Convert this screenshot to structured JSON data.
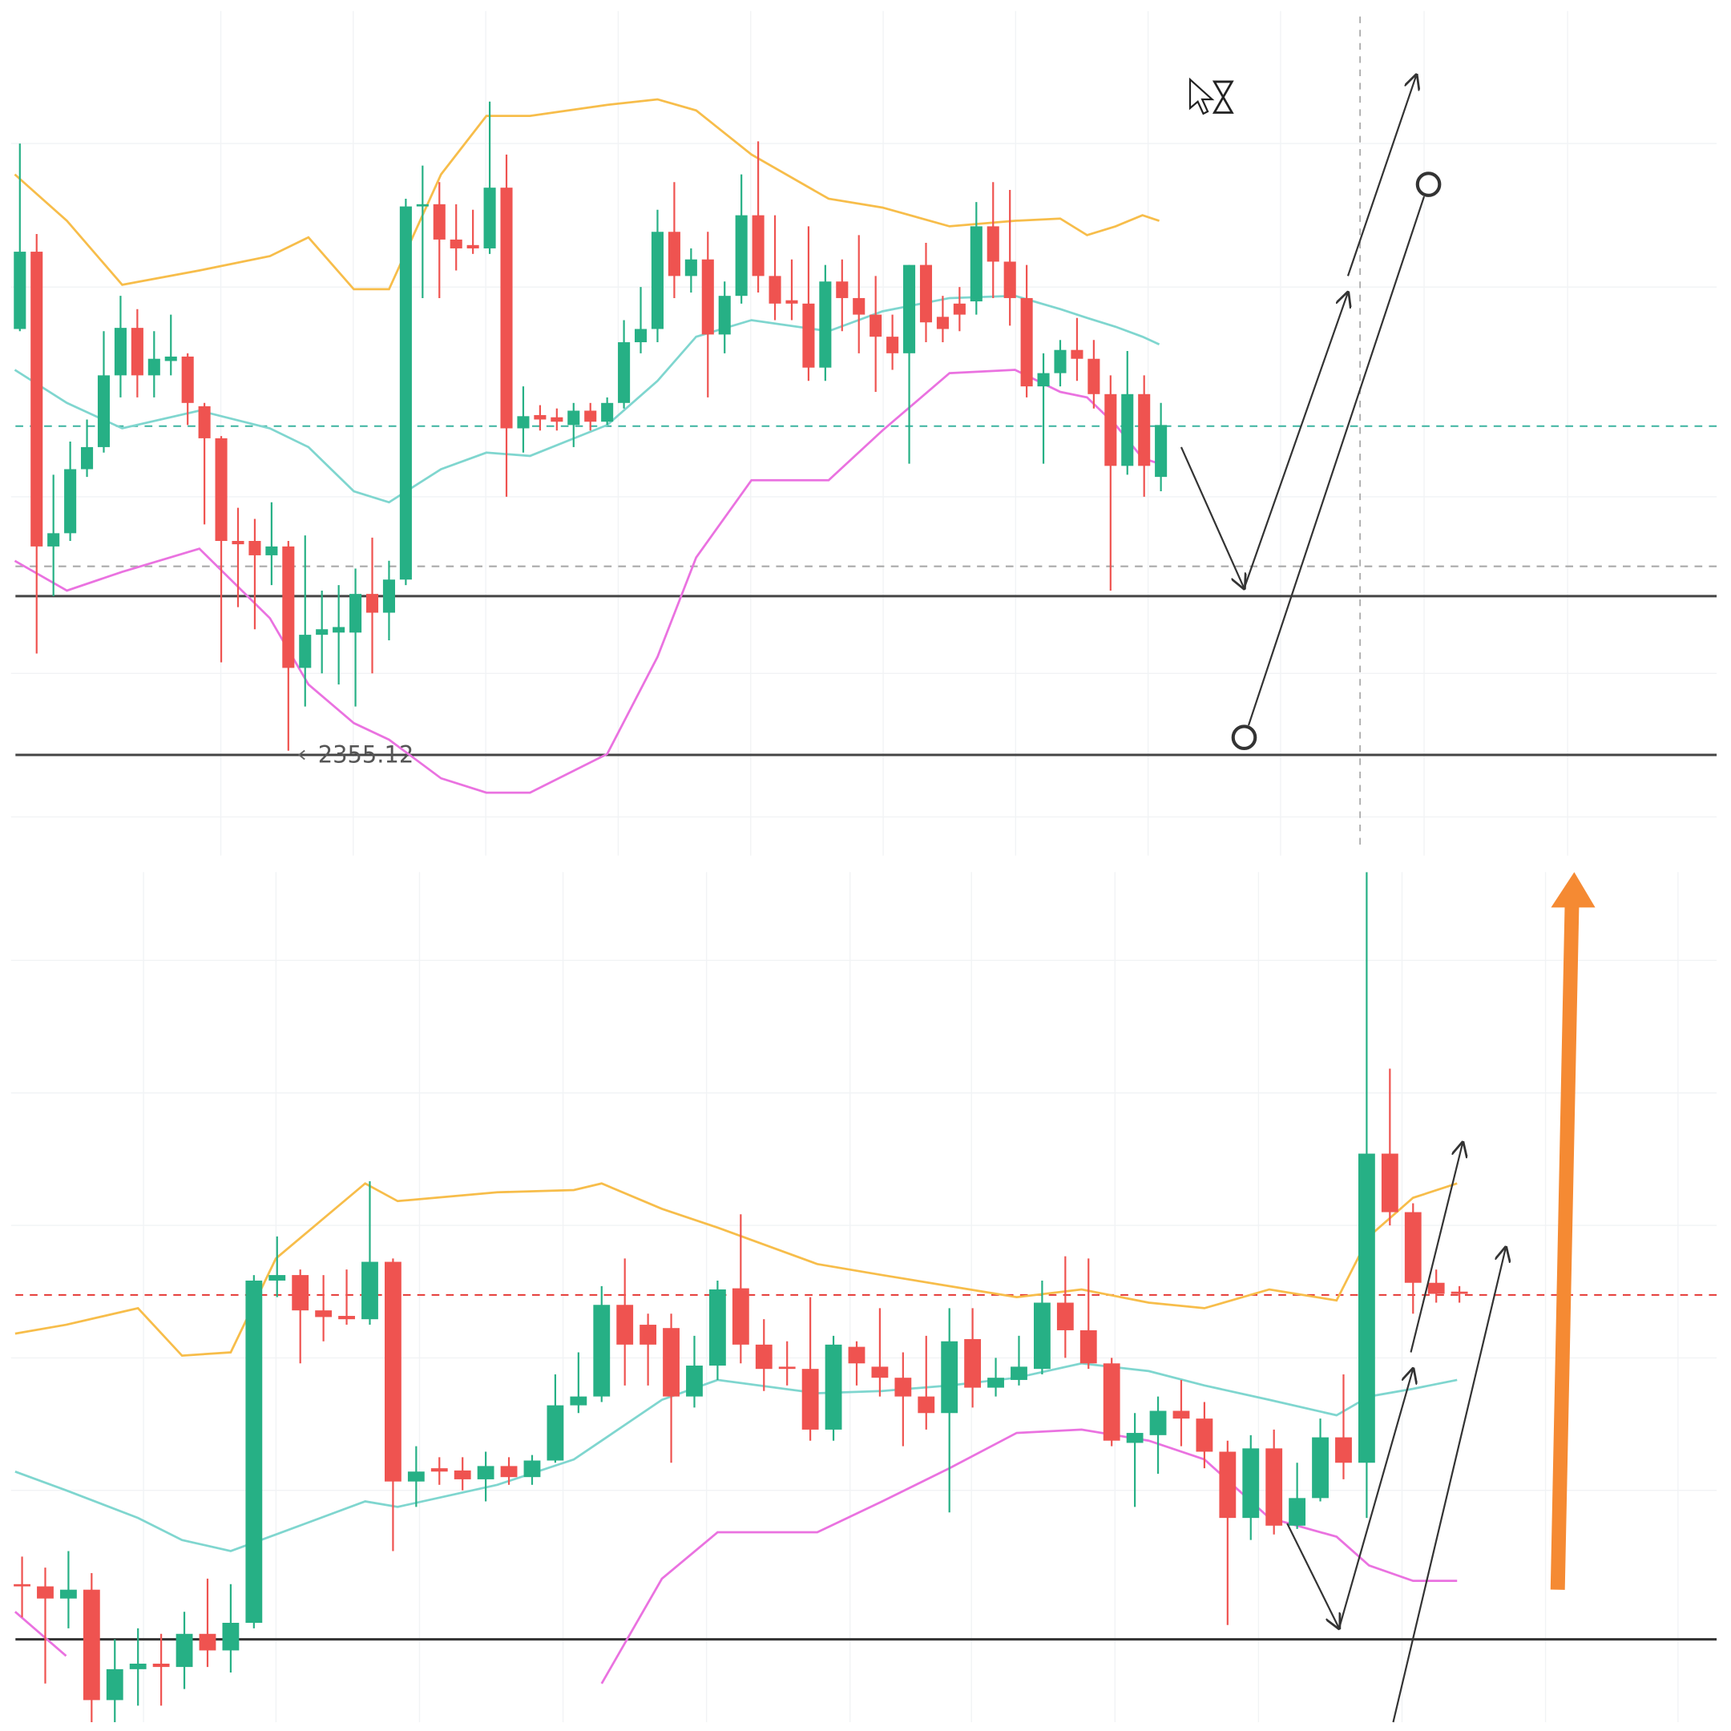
{
  "chart_data": [
    {
      "type": "candlestick",
      "up_color": "#26b085",
      "down_color": "#ef5350",
      "ylim": [
        2346,
        2423.5
      ],
      "open": [
        2393.7,
        2400.7,
        2374.0,
        2375.2,
        2381.0,
        2383.0,
        2389.5,
        2393.8,
        2389.5,
        2390.8,
        2391.2,
        2386.7,
        2383.8,
        2374.5,
        2374.5,
        2373.2,
        2374.0,
        2363.0,
        2366.0,
        2366.2,
        2366.2,
        2369.7,
        2368.0,
        2371.0,
        2404.8,
        2405.0,
        2401.8,
        2401.3,
        2401.0,
        2406.5,
        2384.7,
        2385.9,
        2385.7,
        2385.0,
        2386.3,
        2385.3,
        2387.0,
        2392.5,
        2393.7,
        2402.5,
        2398.5,
        2400.0,
        2393.2,
        2396.7,
        2404.0,
        2398.5,
        2396.3,
        2396.0,
        2390.2,
        2398.0,
        2396.5,
        2395.0,
        2393.0,
        2391.5,
        2399.5,
        2394.8,
        2396.0,
        2396.2,
        2403.0,
        2399.8,
        2396.5,
        2388.5,
        2389.7,
        2391.8,
        2391.0,
        2387.8,
        2381.3,
        2387.8,
        2380.3
      ],
      "high": [
        2410.5,
        2402.3,
        2380.5,
        2383.5,
        2385.5,
        2393.5,
        2396.7,
        2395.5,
        2393.5,
        2395.0,
        2391.5,
        2387.0,
        2384.0,
        2377.5,
        2376.5,
        2378.0,
        2374.5,
        2375.0,
        2370.0,
        2370.5,
        2372.0,
        2374.8,
        2372.7,
        2405.5,
        2408.5,
        2407.0,
        2405.0,
        2404.5,
        2414.3,
        2409.5,
        2388.5,
        2386.8,
        2386.5,
        2387.0,
        2387.0,
        2387.5,
        2394.5,
        2397.5,
        2404.5,
        2407.0,
        2401.0,
        2402.5,
        2398.0,
        2407.7,
        2410.7,
        2404.0,
        2400.0,
        2403.0,
        2399.5,
        2400.0,
        2402.2,
        2398.5,
        2395.0,
        2399.5,
        2401.5,
        2396.7,
        2397.5,
        2405.2,
        2407.0,
        2406.3,
        2399.5,
        2391.5,
        2392.7,
        2394.7,
        2392.7,
        2389.5,
        2391.7,
        2389.5,
        2387.0
      ],
      "low": [
        2393.5,
        2364.3,
        2369.5,
        2374.5,
        2380.3,
        2382.5,
        2387.5,
        2387.5,
        2387.5,
        2389.5,
        2385.0,
        2376.0,
        2363.5,
        2368.5,
        2366.5,
        2370.5,
        2355.5,
        2359.5,
        2362.5,
        2361.5,
        2359.5,
        2362.5,
        2365.5,
        2370.5,
        2396.5,
        2396.5,
        2399.0,
        2400.5,
        2400.5,
        2378.5,
        2382.5,
        2384.5,
        2384.5,
        2383.0,
        2384.5,
        2385.0,
        2386.5,
        2391.5,
        2392.5,
        2396.5,
        2397.0,
        2387.5,
        2391.5,
        2396.0,
        2397.0,
        2394.5,
        2394.5,
        2389.0,
        2389.0,
        2393.5,
        2391.5,
        2388.0,
        2390.0,
        2381.5,
        2392.5,
        2392.5,
        2393.5,
        2395.0,
        2396.5,
        2394.0,
        2387.5,
        2381.5,
        2388.5,
        2389.0,
        2386.5,
        2370.0,
        2380.5,
        2378.5,
        2379.0
      ],
      "close": [
        2400.7,
        2374.0,
        2375.2,
        2381.0,
        2383.0,
        2389.5,
        2393.8,
        2389.5,
        2391.0,
        2391.2,
        2387.0,
        2383.8,
        2374.5,
        2374.2,
        2373.2,
        2374.0,
        2363.0,
        2366.0,
        2366.5,
        2366.7,
        2369.7,
        2368.0,
        2371.0,
        2404.8,
        2405.0,
        2401.8,
        2401.0,
        2401.0,
        2406.5,
        2384.7,
        2385.8,
        2385.5,
        2385.3,
        2386.3,
        2385.3,
        2387.0,
        2392.5,
        2393.7,
        2402.5,
        2398.5,
        2400.0,
        2393.2,
        2396.7,
        2404.0,
        2398.5,
        2396.0,
        2396.0,
        2390.2,
        2398.0,
        2396.5,
        2395.0,
        2393.0,
        2391.5,
        2399.5,
        2394.3,
        2393.7,
        2395.0,
        2403.0,
        2399.8,
        2396.5,
        2388.5,
        2389.7,
        2391.8,
        2391.0,
        2387.8,
        2381.3,
        2387.8,
        2381.3,
        2385.0
      ],
      "band_x": [
        -0.3,
        2.8,
        6.1,
        10.7,
        14.9,
        17.2,
        19.9,
        22.0,
        25.1,
        27.8,
        30.4,
        35.0,
        38.0,
        40.3,
        43.6,
        48.2,
        51.4,
        55.4,
        59.3,
        62.0,
        63.6,
        65.3,
        66.9,
        67.9
      ],
      "bands": [
        {
          "color": "#f7bd4a",
          "values": [
            2407.7,
            2403.5,
            2397.7,
            2399.0,
            2400.3,
            2402.0,
            2397.3,
            2397.3,
            2407.7,
            2413.0,
            2413.0,
            2414.0,
            2414.5,
            2413.5,
            2409.5,
            2405.5,
            2404.7,
            2403.0,
            2403.5,
            2403.7,
            2402.2,
            2403.0,
            2404.0,
            2403.5
          ]
        },
        {
          "color": "#7fd6cf",
          "values": [
            2390.0,
            2387.0,
            2384.7,
            2386.3,
            2384.7,
            2383.0,
            2379.0,
            2378.0,
            2381.0,
            2382.5,
            2382.2,
            2385.0,
            2389.0,
            2393.0,
            2394.5,
            2393.5,
            2395.3,
            2396.5,
            2396.7,
            2395.5,
            2394.7,
            2393.9,
            2393.0,
            2392.3
          ]
        },
        {
          "color": "#ea72e0",
          "values": [
            2372.7,
            2370.0,
            2371.7,
            2373.8,
            2367.5,
            2361.5,
            2358.0,
            2356.5,
            2353.0,
            2351.7,
            2351.7,
            2355.2,
            2364.0,
            2373.0,
            2380.0,
            2380.0,
            2384.5,
            2389.7,
            2390.0,
            2388.0,
            2387.5,
            2385.0,
            2382.0,
            2381.5
          ]
        }
      ],
      "levels": [
        {
          "value": 2384.9,
          "color": "#3bb3a0",
          "dashed": true
        },
        {
          "value": 2372.2,
          "color": "#aaaaaa",
          "dashed": true
        },
        {
          "value": 2369.5,
          "color": "#444444",
          "dashed": false
        },
        {
          "value": 2355.12,
          "color": "#444444",
          "dashed": false,
          "labeled": true
        }
      ]
    },
    {
      "type": "candlestick",
      "up_color": "#26b085",
      "down_color": "#ef5350",
      "ylim": [
        2339.5,
        2416.5
      ],
      "open": [
        2352.0,
        2351.8,
        2350.7,
        2351.5,
        2341.5,
        2344.3,
        2344.8,
        2344.5,
        2347.5,
        2346.0,
        2348.5,
        2379.5,
        2380.0,
        2376.8,
        2376.3,
        2376.0,
        2381.2,
        2361.3,
        2362.5,
        2362.3,
        2361.5,
        2362.7,
        2361.7,
        2363.2,
        2368.2,
        2369.0,
        2377.3,
        2375.5,
        2375.2,
        2369.0,
        2371.8,
        2378.8,
        2373.7,
        2371.7,
        2371.5,
        2366.0,
        2373.5,
        2371.7,
        2370.7,
        2369.0,
        2367.5,
        2374.2,
        2369.8,
        2370.5,
        2371.5,
        2377.5,
        2375.0,
        2372.0,
        2364.8,
        2365.5,
        2367.7,
        2367.0,
        2364.0,
        2358.0,
        2364.3,
        2357.3,
        2359.8,
        2365.3,
        2363.0,
        2391.0,
        2385.7,
        2379.3,
        2378.5
      ],
      "high": [
        2354.5,
        2353.5,
        2355.0,
        2353.0,
        2347.0,
        2348.0,
        2347.5,
        2349.5,
        2352.5,
        2352.0,
        2380.0,
        2383.5,
        2380.5,
        2380.0,
        2380.5,
        2388.5,
        2381.5,
        2364.5,
        2363.5,
        2363.5,
        2364.0,
        2363.5,
        2363.7,
        2371.0,
        2373.0,
        2379.0,
        2381.5,
        2376.5,
        2376.5,
        2374.5,
        2379.5,
        2385.5,
        2376.0,
        2374.0,
        2378.0,
        2374.5,
        2374.0,
        2377.0,
        2373.0,
        2374.5,
        2377.0,
        2377.0,
        2372.5,
        2374.5,
        2379.5,
        2381.7,
        2381.5,
        2372.5,
        2367.5,
        2369.0,
        2370.5,
        2368.5,
        2365.0,
        2365.5,
        2366.0,
        2363.0,
        2367.0,
        2371.0,
        2416.5,
        2398.7,
        2386.5,
        2380.5,
        2379.0
      ],
      "low": [
        2349.0,
        2343.0,
        2348.0,
        2339.5,
        2339.5,
        2341.0,
        2341.0,
        2342.5,
        2344.5,
        2344.0,
        2348.0,
        2378.0,
        2372.0,
        2374.0,
        2375.5,
        2375.5,
        2355.0,
        2359.0,
        2361.0,
        2360.5,
        2359.5,
        2361.0,
        2361.0,
        2363.0,
        2367.5,
        2368.5,
        2370.0,
        2370.0,
        2363.0,
        2368.0,
        2370.5,
        2372.0,
        2369.5,
        2370.0,
        2365.0,
        2365.0,
        2370.0,
        2369.0,
        2364.5,
        2366.0,
        2358.5,
        2368.0,
        2369.0,
        2370.0,
        2371.0,
        2372.5,
        2371.5,
        2364.5,
        2359.0,
        2362.0,
        2364.5,
        2362.5,
        2348.3,
        2356.0,
        2356.5,
        2357.0,
        2359.5,
        2361.5,
        2358.0,
        2384.5,
        2376.5,
        2377.5,
        2377.5
      ],
      "close": [
        2351.8,
        2350.7,
        2351.5,
        2341.5,
        2344.3,
        2344.8,
        2344.5,
        2347.5,
        2346.0,
        2348.5,
        2379.5,
        2380.0,
        2376.8,
        2376.2,
        2376.0,
        2381.2,
        2361.3,
        2362.2,
        2362.2,
        2361.5,
        2362.7,
        2361.7,
        2363.2,
        2368.2,
        2369.0,
        2377.3,
        2373.7,
        2373.7,
        2369.0,
        2371.8,
        2378.7,
        2373.7,
        2371.5,
        2371.5,
        2366.0,
        2373.7,
        2372.0,
        2370.7,
        2369.0,
        2367.5,
        2374.0,
        2369.8,
        2370.7,
        2371.7,
        2377.5,
        2375.0,
        2372.0,
        2365.0,
        2365.7,
        2367.7,
        2367.0,
        2364.0,
        2358.0,
        2364.3,
        2357.3,
        2359.8,
        2365.3,
        2363.0,
        2391.0,
        2385.7,
        2379.3,
        2378.3,
        2378.3
      ],
      "band_x": [
        -0.3,
        1.9,
        5.0,
        6.9,
        9.0,
        10.95,
        14.8,
        16.2,
        20.5,
        23.8,
        25.0,
        27.6,
        30.0,
        34.3,
        37.1,
        40.0,
        42.9,
        45.7,
        48.6,
        51.0,
        53.8,
        56.7,
        58.1,
        60.0,
        61.9
      ],
      "bands": [
        {
          "color": "#f7bd4a",
          "values": [
            2374.7,
            2375.5,
            2377.0,
            2372.7,
            2373.0,
            2381.5,
            2388.3,
            2386.7,
            2387.5,
            2387.7,
            2388.3,
            2386.0,
            2384.3,
            2381.0,
            2380.0,
            2379.0,
            2378.0,
            2378.7,
            2377.5,
            2377.0,
            2378.7,
            2377.7,
            2383.5,
            2387.0,
            2388.3
          ]
        },
        {
          "color": "#7fd6cf",
          "values": [
            2362.2,
            2360.5,
            2358.0,
            2356.0,
            2355.0,
            2356.5,
            2359.5,
            2359.0,
            2361.0,
            2363.3,
            2365.0,
            2368.7,
            2370.5,
            2369.3,
            2369.5,
            2370.0,
            2370.7,
            2372.0,
            2371.3,
            2370.0,
            2368.7,
            2367.3,
            2369.0,
            2369.7,
            2370.5
          ]
        },
        {
          "color": "#ea72e0",
          "values": [
            2349.5,
            2345.5,
            null,
            null,
            null,
            null,
            null,
            null,
            null,
            null,
            2343.0,
            2352.5,
            2356.7,
            2356.7,
            2359.5,
            2362.5,
            2365.7,
            2366.0,
            2365.0,
            2363.3,
            2358.0,
            2356.3,
            2353.7,
            2352.3,
            2352.3
          ]
        }
      ],
      "levels": [
        {
          "value": 2378.2,
          "color": "#e53935",
          "dashed": true
        },
        {
          "value": 2347.0,
          "color": "#333333",
          "dashed": false
        }
      ]
    }
  ]
}
